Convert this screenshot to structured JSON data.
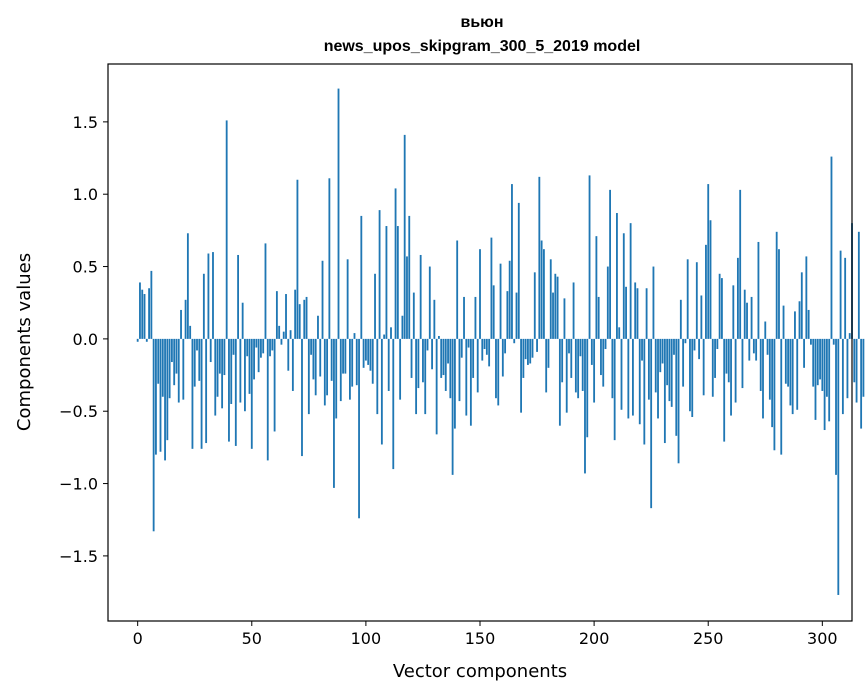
{
  "chart_data": {
    "type": "bar",
    "title": "вьюн",
    "subtitle": "news_upos_skipgram_300_5_2019 model",
    "xlabel": "Vector components",
    "ylabel": "Components values",
    "xlim": [
      -13,
      313
    ],
    "ylim": [
      -1.95,
      1.9
    ],
    "xticks": [
      0,
      50,
      100,
      150,
      200,
      250,
      300
    ],
    "yticks": [
      -1.5,
      -1.0,
      -0.5,
      0.0,
      0.5,
      1.0,
      1.5
    ],
    "ytick_labels": [
      "−1.5",
      "−1.0",
      "−0.5",
      "0.0",
      "0.5",
      "1.0",
      "1.5"
    ],
    "bar_color": "#1f77b4",
    "grid": false,
    "values": [
      -0.02,
      0.39,
      0.34,
      0.31,
      -0.02,
      0.35,
      0.47,
      -1.33,
      -0.8,
      -0.31,
      -0.78,
      -0.4,
      -0.84,
      -0.7,
      -0.41,
      -0.16,
      -0.32,
      -0.24,
      -0.44,
      0.2,
      -0.42,
      0.27,
      0.73,
      0.09,
      -0.76,
      -0.33,
      -0.08,
      -0.29,
      -0.76,
      0.45,
      -0.72,
      0.59,
      -0.16,
      0.6,
      -0.53,
      -0.4,
      -0.24,
      -0.48,
      -0.25,
      1.51,
      -0.71,
      -0.45,
      -0.11,
      -0.74,
      0.58,
      -0.44,
      0.25,
      -0.5,
      -0.12,
      -0.38,
      -0.76,
      -0.28,
      -0.06,
      -0.23,
      -0.13,
      -0.1,
      0.66,
      -0.84,
      -0.12,
      -0.08,
      -0.64,
      0.33,
      0.09,
      -0.04,
      0.05,
      0.31,
      -0.22,
      0.06,
      -0.36,
      0.34,
      1.1,
      0.24,
      -0.81,
      0.27,
      0.29,
      -0.52,
      -0.11,
      -0.28,
      -0.39,
      0.16,
      -0.26,
      0.54,
      -0.46,
      -0.39,
      1.11,
      -0.29,
      -1.03,
      -0.55,
      1.73,
      -0.43,
      -0.24,
      -0.24,
      0.55,
      -0.42,
      -0.33,
      0.04,
      -0.32,
      -1.24,
      0.85,
      -0.2,
      -0.15,
      -0.18,
      -0.22,
      -0.31,
      0.45,
      -0.52,
      0.89,
      -0.73,
      0.03,
      0.78,
      -0.36,
      0.08,
      -0.9,
      1.04,
      0.78,
      -0.42,
      0.16,
      1.41,
      0.57,
      0.85,
      -0.27,
      0.32,
      -0.52,
      -0.34,
      0.58,
      -0.3,
      -0.52,
      -0.08,
      0.5,
      -0.21,
      0.27,
      -0.66,
      0.02,
      -0.27,
      -0.25,
      -0.36,
      -0.17,
      -0.41,
      -0.94,
      -0.62,
      0.68,
      -0.43,
      -0.13,
      0.29,
      -0.53,
      -0.06,
      -0.6,
      -0.27,
      0.29,
      -0.37,
      0.62,
      -0.15,
      -0.07,
      -0.11,
      -0.19,
      0.7,
      0.37,
      -0.41,
      -0.46,
      0.52,
      -0.26,
      -0.1,
      0.33,
      0.54,
      1.07,
      -0.03,
      0.32,
      0.94,
      -0.51,
      -0.27,
      -0.14,
      -0.18,
      -0.17,
      -0.13,
      0.46,
      -0.09,
      1.12,
      0.68,
      0.62,
      -0.37,
      -0.2,
      0.55,
      0.32,
      0.45,
      0.43,
      -0.6,
      -0.3,
      0.28,
      -0.51,
      -0.1,
      -0.27,
      0.39,
      -0.37,
      -0.41,
      -0.12,
      -0.36,
      -0.93,
      -0.68,
      1.13,
      -0.18,
      -0.44,
      0.71,
      0.29,
      -0.25,
      -0.33,
      -0.07,
      0.5,
      1.03,
      -0.41,
      -0.7,
      0.87,
      0.08,
      -0.49,
      0.73,
      0.36,
      -0.55,
      0.8,
      -0.53,
      0.39,
      0.35,
      -0.59,
      -0.15,
      -0.73,
      0.35,
      -0.42,
      -1.17,
      0.5,
      -0.37,
      -0.55,
      -0.23,
      -0.17,
      -0.72,
      -0.32,
      -0.43,
      -0.47,
      -0.11,
      -0.67,
      -0.86,
      0.27,
      -0.33,
      -0.03,
      0.55,
      -0.5,
      -0.54,
      -0.08,
      0.53,
      -0.14,
      0.3,
      -0.39,
      0.65,
      1.07,
      0.82,
      -0.4,
      -0.27,
      -0.07,
      0.45,
      0.42,
      -0.71,
      -0.24,
      -0.3,
      -0.53,
      0.37,
      -0.44,
      0.56,
      1.03,
      -0.34,
      0.34,
      0.25,
      -0.15,
      0.29,
      -0.1,
      -0.15,
      0.67,
      -0.36,
      -0.55,
      0.12,
      -0.11,
      -0.42,
      -0.61,
      -0.77,
      0.74,
      0.62,
      -0.8,
      0.23,
      -0.31,
      -0.33,
      -0.46,
      -0.52,
      0.19,
      -0.49,
      0.26,
      0.46,
      -0.2,
      0.57,
      0.2,
      -0.04,
      -0.33,
      -0.56,
      -0.32,
      -0.28,
      -0.36,
      -0.63,
      -0.4,
      -0.57,
      1.26,
      -0.04,
      -0.94,
      -1.77,
      0.61,
      -0.52,
      0.56,
      -0.41,
      0.04,
      0.8,
      -0.3,
      -0.44,
      0.74,
      -0.62,
      -0.4
    ]
  }
}
